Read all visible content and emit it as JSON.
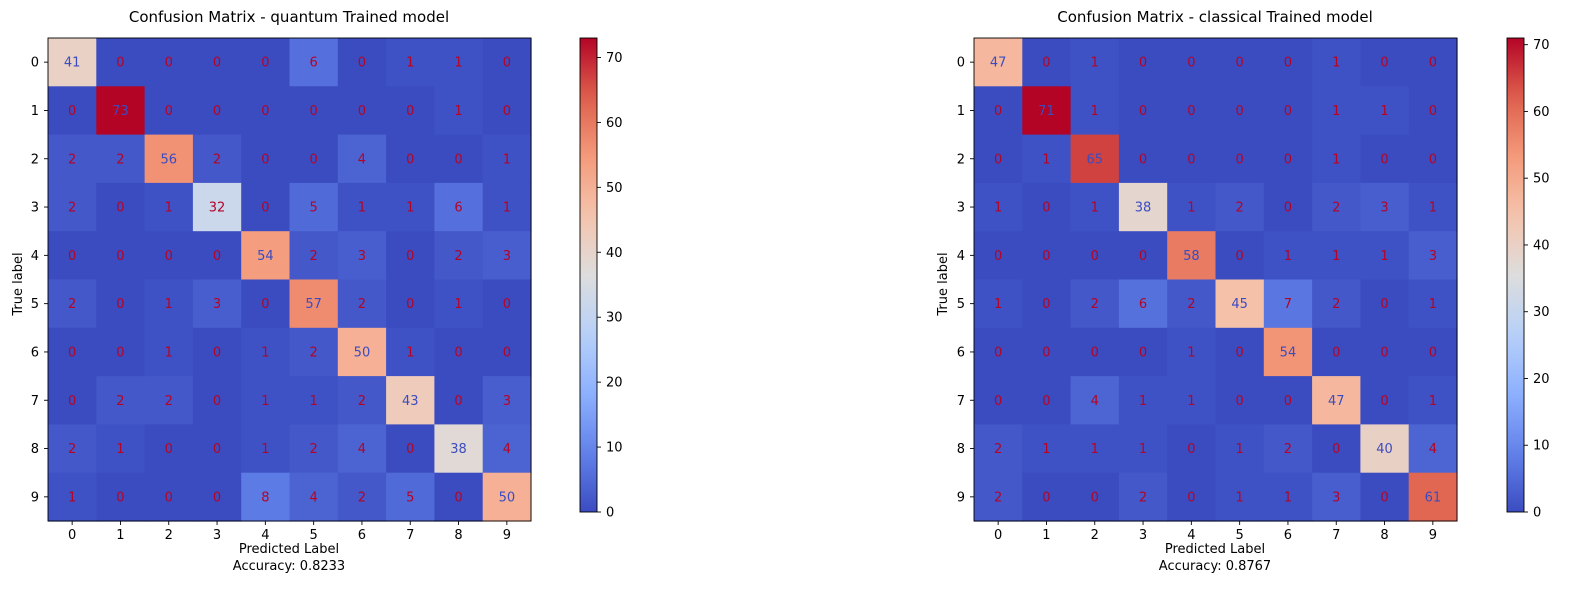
{
  "chart_data": [
    {
      "type": "heatmap",
      "title": "Confusion Matrix - quantum Trained model",
      "xlabel": "Predicted Label",
      "xlabel_note": "Accuracy: 0.8233",
      "ylabel": "True label",
      "x_ticks": [
        "0",
        "1",
        "2",
        "3",
        "4",
        "5",
        "6",
        "7",
        "8",
        "9"
      ],
      "y_ticks": [
        "0",
        "1",
        "2",
        "3",
        "4",
        "5",
        "6",
        "7",
        "8",
        "9"
      ],
      "colormap": "coolwarm",
      "color_range": [
        0,
        73
      ],
      "colorbar_ticks": [
        0,
        10,
        20,
        30,
        40,
        50,
        60,
        70
      ],
      "matrix": [
        [
          41,
          0,
          0,
          0,
          0,
          6,
          0,
          1,
          1,
          0
        ],
        [
          0,
          73,
          0,
          0,
          0,
          0,
          0,
          0,
          1,
          0
        ],
        [
          2,
          2,
          56,
          2,
          0,
          0,
          4,
          0,
          0,
          1
        ],
        [
          2,
          0,
          1,
          32,
          0,
          5,
          1,
          1,
          6,
          1
        ],
        [
          0,
          0,
          0,
          0,
          54,
          2,
          3,
          0,
          2,
          3
        ],
        [
          2,
          0,
          1,
          3,
          0,
          57,
          2,
          0,
          1,
          0
        ],
        [
          0,
          0,
          1,
          0,
          1,
          2,
          50,
          1,
          0,
          0
        ],
        [
          0,
          2,
          2,
          0,
          1,
          1,
          2,
          43,
          0,
          3
        ],
        [
          2,
          1,
          0,
          0,
          1,
          2,
          4,
          0,
          38,
          4
        ],
        [
          1,
          0,
          0,
          0,
          8,
          4,
          2,
          5,
          0,
          50
        ]
      ]
    },
    {
      "type": "heatmap",
      "title": "Confusion Matrix - classical Trained model",
      "xlabel": "Predicted Label",
      "xlabel_note": "Accuracy: 0.8767",
      "ylabel": "True label",
      "x_ticks": [
        "0",
        "1",
        "2",
        "3",
        "4",
        "5",
        "6",
        "7",
        "8",
        "9"
      ],
      "y_ticks": [
        "0",
        "1",
        "2",
        "3",
        "4",
        "5",
        "6",
        "7",
        "8",
        "9"
      ],
      "colormap": "coolwarm",
      "color_range": [
        0,
        71
      ],
      "colorbar_ticks": [
        0,
        10,
        20,
        30,
        40,
        50,
        60,
        70
      ],
      "matrix": [
        [
          47,
          0,
          1,
          0,
          0,
          0,
          0,
          1,
          0,
          0
        ],
        [
          0,
          71,
          1,
          0,
          0,
          0,
          0,
          1,
          1,
          0
        ],
        [
          0,
          1,
          65,
          0,
          0,
          0,
          0,
          1,
          0,
          0
        ],
        [
          1,
          0,
          1,
          38,
          1,
          2,
          0,
          2,
          3,
          1
        ],
        [
          0,
          0,
          0,
          0,
          58,
          0,
          1,
          1,
          1,
          3
        ],
        [
          1,
          0,
          2,
          6,
          2,
          45,
          7,
          2,
          0,
          1
        ],
        [
          0,
          0,
          0,
          0,
          1,
          0,
          54,
          0,
          0,
          0
        ],
        [
          0,
          0,
          4,
          1,
          1,
          0,
          0,
          47,
          0,
          1
        ],
        [
          2,
          1,
          1,
          1,
          0,
          1,
          2,
          0,
          40,
          4
        ],
        [
          2,
          0,
          0,
          2,
          0,
          1,
          1,
          3,
          0,
          61
        ]
      ]
    }
  ]
}
